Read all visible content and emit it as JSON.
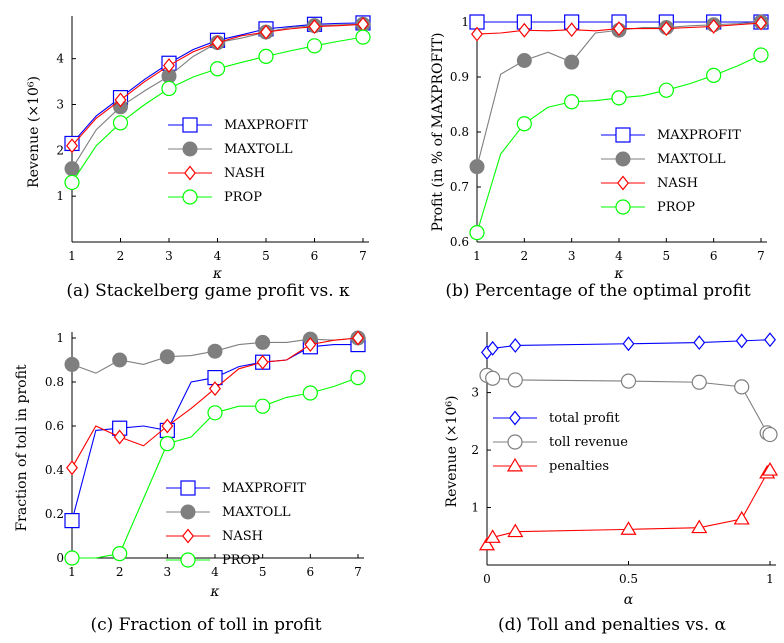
{
  "colors": {
    "blue": "#0000ff",
    "gray": "#7f7f7f",
    "red": "#ff0000",
    "green": "#00ff00"
  },
  "chart_data": [
    {
      "id": "a",
      "type": "line",
      "caption": "(a) Stackelberg game profit vs. κ",
      "xlabel": "κ",
      "ylabel": "Revenue (×10⁶)",
      "xlim": [
        1,
        7
      ],
      "ylim": [
        0,
        4.8
      ],
      "xticks": [
        1,
        2,
        3,
        4,
        5,
        6,
        7
      ],
      "yticks": [
        1,
        2,
        3,
        4
      ],
      "legend_position": "center-right",
      "series": [
        {
          "name": "MAXPROFIT",
          "color": "#0000ff",
          "marker": "square",
          "x": [
            1,
            1.5,
            2,
            2.5,
            3,
            3.5,
            4,
            4.5,
            5,
            5.5,
            6,
            6.5,
            7
          ],
          "y": [
            2.15,
            2.75,
            3.15,
            3.55,
            3.9,
            4.2,
            4.4,
            4.52,
            4.65,
            4.7,
            4.75,
            4.77,
            4.78
          ],
          "marks": [
            0,
            2,
            4,
            6,
            8,
            10,
            12
          ]
        },
        {
          "name": "MAXTOLL",
          "color": "#7f7f7f",
          "marker": "circle",
          "x": [
            1,
            1.5,
            2,
            2.5,
            3,
            3.5,
            4,
            4.5,
            5,
            5.5,
            6,
            6.5,
            7
          ],
          "y": [
            1.6,
            2.45,
            2.95,
            3.3,
            3.62,
            4.05,
            4.35,
            4.45,
            4.58,
            4.68,
            4.72,
            4.74,
            4.75
          ],
          "marks": [
            0,
            2,
            4,
            6,
            8,
            10,
            12
          ]
        },
        {
          "name": "NASH",
          "color": "#ff0000",
          "marker": "diamond",
          "x": [
            1,
            1.5,
            2,
            2.5,
            3,
            3.5,
            4,
            4.5,
            5,
            5.5,
            6,
            6.5,
            7
          ],
          "y": [
            2.1,
            2.7,
            3.1,
            3.5,
            3.85,
            4.15,
            4.35,
            4.5,
            4.58,
            4.65,
            4.7,
            4.72,
            4.75
          ],
          "marks": [
            0,
            2,
            4,
            6,
            8,
            10,
            12
          ]
        },
        {
          "name": "PROP",
          "color": "#00ff00",
          "marker": "circle-open",
          "x": [
            1,
            1.5,
            2,
            2.5,
            3,
            3.5,
            4,
            4.5,
            5,
            5.5,
            6,
            6.5,
            7
          ],
          "y": [
            1.3,
            2.1,
            2.6,
            3.0,
            3.35,
            3.6,
            3.78,
            3.92,
            4.05,
            4.17,
            4.28,
            4.38,
            4.47
          ],
          "marks": [
            0,
            2,
            4,
            6,
            8,
            10,
            12
          ]
        }
      ]
    },
    {
      "id": "b",
      "type": "line",
      "caption": "(b) Percentage of the optimal profit",
      "xlabel": "κ",
      "ylabel": "Profit (in % of MAXPROFIT)",
      "xlim": [
        1,
        7
      ],
      "ylim": [
        0.6,
        1.0
      ],
      "xticks": [
        1,
        2,
        3,
        4,
        5,
        6,
        7
      ],
      "yticks": [
        0.6,
        0.7,
        0.8,
        0.9,
        1
      ],
      "legend_position": "bottom-right",
      "series": [
        {
          "name": "MAXPROFIT",
          "color": "#0000ff",
          "marker": "square",
          "x": [
            1,
            2,
            3,
            4,
            5,
            6,
            7
          ],
          "y": [
            1,
            1,
            1,
            1,
            1,
            1,
            1
          ],
          "marks": [
            0,
            1,
            2,
            3,
            4,
            5,
            6
          ]
        },
        {
          "name": "MAXTOLL",
          "color": "#7f7f7f",
          "marker": "circle",
          "x": [
            1,
            1.5,
            2,
            2.5,
            3,
            3.5,
            4,
            4.5,
            5,
            5.5,
            6,
            6.5,
            7
          ],
          "y": [
            0.737,
            0.905,
            0.93,
            0.945,
            0.927,
            0.98,
            0.985,
            0.99,
            0.99,
            0.993,
            0.995,
            0.997,
            1.0
          ],
          "marks": [
            0,
            2,
            4,
            6,
            8,
            10,
            12
          ]
        },
        {
          "name": "NASH",
          "color": "#ff0000",
          "marker": "diamond",
          "x": [
            1,
            1.5,
            2,
            2.5,
            3,
            3.5,
            4,
            4.5,
            5,
            5.5,
            6,
            6.5,
            7
          ],
          "y": [
            0.978,
            0.98,
            0.985,
            0.984,
            0.986,
            0.984,
            0.988,
            0.988,
            0.988,
            0.99,
            0.992,
            0.995,
            0.998
          ],
          "marks": [
            0,
            2,
            4,
            6,
            8,
            10,
            12
          ]
        },
        {
          "name": "PROP",
          "color": "#00ff00",
          "marker": "circle-open",
          "x": [
            1,
            1.5,
            2,
            2.5,
            3,
            3.5,
            4,
            4.5,
            5,
            5.5,
            6,
            6.5,
            7
          ],
          "y": [
            0.617,
            0.76,
            0.815,
            0.845,
            0.855,
            0.857,
            0.862,
            0.866,
            0.876,
            0.888,
            0.903,
            0.92,
            0.94
          ],
          "marks": [
            0,
            2,
            4,
            6,
            8,
            10,
            12
          ]
        }
      ]
    },
    {
      "id": "c",
      "type": "line",
      "caption": "(c) Fraction of toll in profit",
      "xlabel": "κ",
      "ylabel": "Fraction of toll in profit",
      "xlim": [
        1,
        7
      ],
      "ylim": [
        0,
        1.0
      ],
      "xticks": [
        1,
        2,
        3,
        4,
        5,
        6,
        7
      ],
      "yticks": [
        0,
        0.2,
        0.4,
        0.6,
        0.8,
        1
      ],
      "legend_position": "bottom-right",
      "series": [
        {
          "name": "MAXPROFIT",
          "color": "#0000ff",
          "marker": "square",
          "x": [
            1,
            1.5,
            2,
            2.5,
            3,
            3.5,
            4,
            4.5,
            5,
            5.5,
            6,
            6.5,
            7
          ],
          "y": [
            0.17,
            0.58,
            0.59,
            0.6,
            0.58,
            0.8,
            0.82,
            0.87,
            0.89,
            0.9,
            0.96,
            0.97,
            0.97
          ],
          "marks": [
            0,
            2,
            4,
            6,
            8,
            10,
            12
          ]
        },
        {
          "name": "MAXTOLL",
          "color": "#7f7f7f",
          "marker": "circle",
          "x": [
            1,
            1.5,
            2,
            2.5,
            3,
            3.5,
            4,
            4.5,
            5,
            5.5,
            6,
            6.5,
            7
          ],
          "y": [
            0.88,
            0.84,
            0.9,
            0.88,
            0.915,
            0.92,
            0.94,
            0.97,
            0.98,
            0.98,
            0.995,
            0.99,
            1.0
          ],
          "marks": [
            0,
            2,
            4,
            6,
            8,
            10,
            12
          ]
        },
        {
          "name": "NASH",
          "color": "#ff0000",
          "marker": "diamond",
          "x": [
            1,
            1.5,
            2,
            2.5,
            3,
            3.5,
            4,
            4.5,
            5,
            5.5,
            6,
            6.5,
            7
          ],
          "y": [
            0.41,
            0.6,
            0.55,
            0.51,
            0.6,
            0.68,
            0.77,
            0.86,
            0.89,
            0.9,
            0.97,
            0.99,
            1.0
          ],
          "marks": [
            0,
            2,
            4,
            6,
            8,
            10,
            12
          ]
        },
        {
          "name": "PROP",
          "color": "#00ff00",
          "marker": "circle-open",
          "x": [
            1,
            1.5,
            2,
            2.5,
            3,
            3.5,
            4,
            4.5,
            5,
            5.5,
            6,
            6.5,
            7
          ],
          "y": [
            0.0,
            0.0,
            0.02,
            0.27,
            0.52,
            0.55,
            0.66,
            0.69,
            0.69,
            0.73,
            0.75,
            0.78,
            0.82
          ],
          "marks": [
            0,
            2,
            4,
            6,
            8,
            10,
            12
          ]
        }
      ]
    },
    {
      "id": "d",
      "type": "line",
      "caption": "(d) Toll and penalties vs. α",
      "xlabel": "α",
      "ylabel": "Revenue (×10⁶)",
      "xlim": [
        0,
        1
      ],
      "ylim": [
        0,
        3.95
      ],
      "xticks": [
        0,
        0.5,
        1
      ],
      "yticks": [
        1,
        2,
        3
      ],
      "legend_position": "center",
      "series": [
        {
          "name": "total profit",
          "color": "#0000ff",
          "marker": "diamond",
          "x": [
            0,
            0.02,
            0.1,
            0.5,
            0.75,
            0.9,
            1.0
          ],
          "y": [
            3.7,
            3.77,
            3.82,
            3.85,
            3.87,
            3.9,
            3.92
          ],
          "marks": [
            0,
            1,
            2,
            3,
            4,
            5,
            6
          ]
        },
        {
          "name": "toll revenue",
          "color": "#7f7f7f",
          "marker": "circle-open",
          "x": [
            0,
            0.02,
            0.1,
            0.5,
            0.75,
            0.9,
            0.99,
            1.0
          ],
          "y": [
            3.3,
            3.25,
            3.22,
            3.2,
            3.18,
            3.1,
            2.3,
            2.27
          ],
          "marks": [
            0,
            1,
            2,
            3,
            4,
            5,
            6,
            7
          ]
        },
        {
          "name": "penalties",
          "color": "#ff0000",
          "marker": "triangle",
          "x": [
            0,
            0.02,
            0.1,
            0.5,
            0.75,
            0.9,
            0.99,
            1.0
          ],
          "y": [
            0.35,
            0.48,
            0.58,
            0.62,
            0.65,
            0.8,
            1.6,
            1.65
          ],
          "marks": [
            0,
            1,
            2,
            3,
            4,
            5,
            6,
            7
          ]
        }
      ]
    }
  ]
}
